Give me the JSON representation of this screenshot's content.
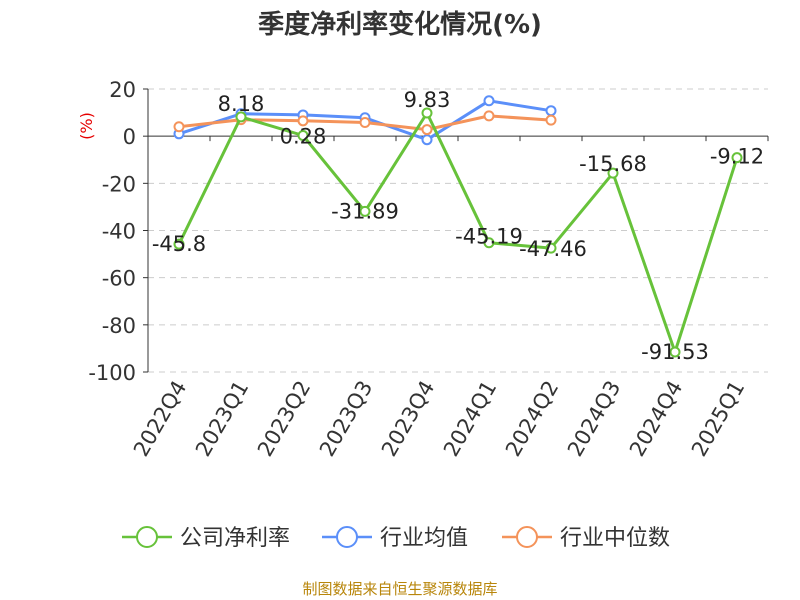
{
  "chart_data": {
    "type": "line",
    "title": "季度净利率变化情况(%)",
    "ylabel": "(%)",
    "categories": [
      "2022Q4",
      "2023Q1",
      "2023Q2",
      "2023Q3",
      "2023Q4",
      "2024Q1",
      "2024Q2",
      "2024Q3",
      "2024Q4",
      "2025Q1"
    ],
    "ylim": [
      -100,
      20
    ],
    "yticks": [
      20,
      0,
      -20,
      -40,
      -60,
      -80,
      -100
    ],
    "grid": "horizontal-dashed",
    "legend_position": "bottom",
    "series": [
      {
        "name": "公司净利率",
        "color": "#67c23a",
        "values": [
          -45.8,
          8.18,
          0.28,
          -31.89,
          9.83,
          -45.19,
          -47.46,
          -15.68,
          -91.53,
          -9.12
        ],
        "labels": [
          "-45.8",
          "8.18",
          "0.28",
          "-31.89",
          "9.83",
          "-45.19",
          "-47.46",
          "-15.68",
          "-91.53",
          "-9.12"
        ]
      },
      {
        "name": "行业均值",
        "color": "#5b8ff9",
        "values": [
          1.0,
          9.5,
          9.0,
          7.8,
          -1.5,
          15.0,
          10.8,
          null,
          null,
          null
        ]
      },
      {
        "name": "行业中位数",
        "color": "#f4935a",
        "values": [
          4.0,
          7.0,
          6.5,
          5.8,
          2.8,
          8.6,
          6.8,
          null,
          null,
          null
        ]
      }
    ]
  },
  "footer": {
    "source": "制图数据来自恒生聚源数据库"
  }
}
